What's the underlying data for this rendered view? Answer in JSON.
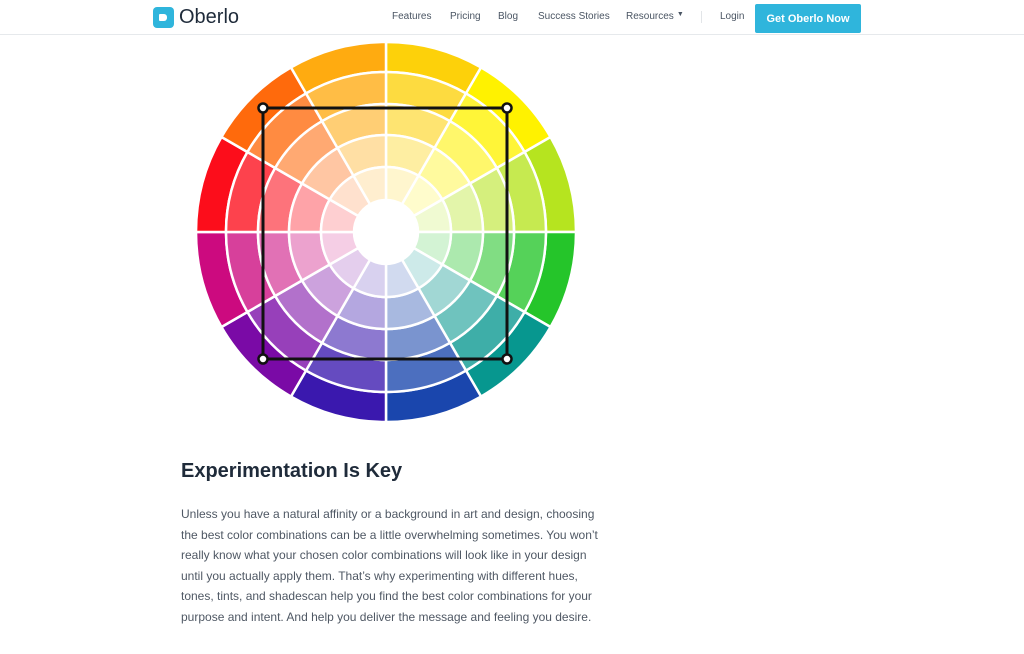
{
  "header": {
    "logo_text": "Oberlo",
    "nav": [
      "Features",
      "Pricing",
      "Blog",
      "Success Stories",
      "Resources"
    ],
    "login": "Login",
    "cta": "Get Oberlo Now",
    "accent_color": "#2fb5dc"
  },
  "color_wheel": {
    "segment_colors_clockwise_from_top": [
      "#fdd10a",
      "#fff200",
      "#b6e41f",
      "#25c52a",
      "#07978f",
      "#1a46ad",
      "#3a18ae",
      "#7a0aa6",
      "#cc0a7f",
      "#fc0d1b",
      "#ff6a0c",
      "#ffab10"
    ],
    "rings": 5,
    "overlay_shape": "square"
  },
  "article": {
    "heading": "Experimentation Is Key",
    "body": "Unless you have a natural affinity or a background in art and design, choosing the best color combinations can be a little overwhelming sometimes. You won’t really know what your chosen color combinations will look like in your design until you actually apply them. That’s why experimenting with different hues, tones, tints, and shadescan help you find the best color combinations for your purpose and intent. And help you deliver the message and feeling you desire."
  }
}
